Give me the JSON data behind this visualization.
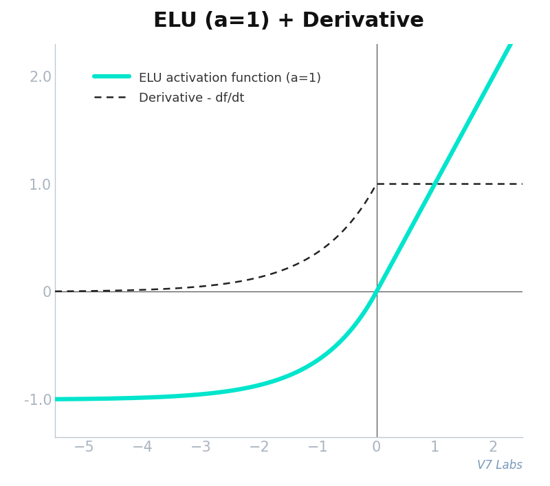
{
  "title": "ELU (a=1) + Derivative",
  "title_fontsize": 22,
  "title_fontweight": "bold",
  "xlim": [
    -5.5,
    2.5
  ],
  "ylim": [
    -1.35,
    2.3
  ],
  "xticks": [
    -5,
    -4,
    -3,
    -2,
    -1,
    0,
    1,
    2
  ],
  "yticks": [
    -1.0,
    0,
    1.0,
    2.0
  ],
  "ytick_labels": [
    "-1.0",
    "0",
    "1.0",
    "2.0"
  ],
  "elu_color": "#00E5CC",
  "deriv_color": "#222222",
  "elu_linewidth": 4.5,
  "deriv_linewidth": 1.8,
  "deriv_linestyle": "dashed",
  "tick_labelcolor": "#aab4c0",
  "spine_color": "#c0c8d0",
  "axhline_color": "#555555",
  "axvline_color": "#555555",
  "legend_elu_label": "ELU activation function (a=1)",
  "legend_deriv_label": "Derivative - df/dt",
  "legend_fontsize": 13,
  "legend_text_color": "#333333",
  "watermark": "V7 Labs",
  "watermark_color": "#7799bb",
  "watermark_fontsize": 12,
  "bg_color": "#ffffff",
  "tick_fontsize": 15,
  "fig_width": 8.0,
  "fig_height": 7.07,
  "dpi": 100
}
